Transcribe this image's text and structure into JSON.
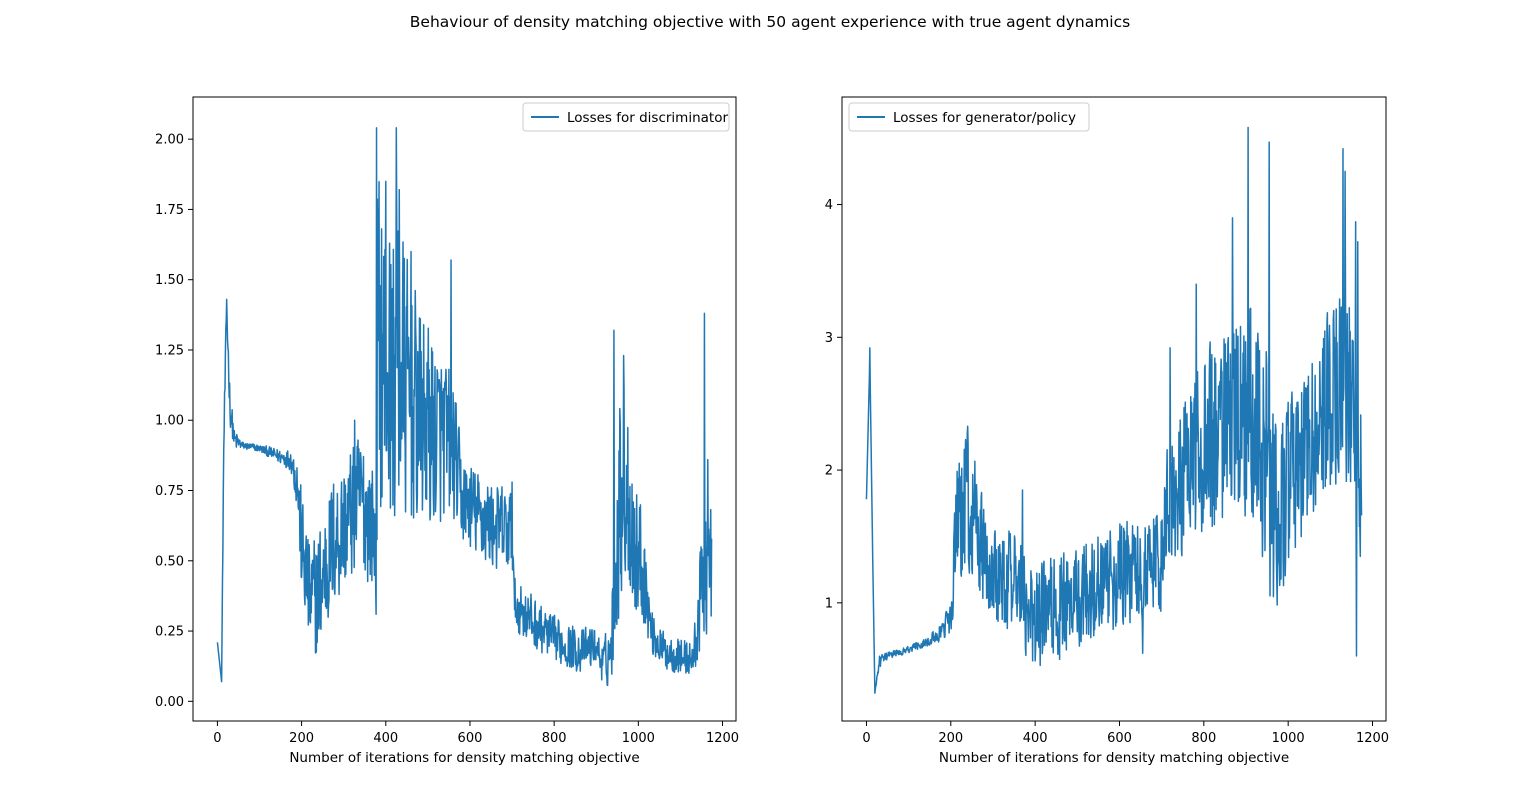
{
  "figure_title": "Behaviour of density matching objective with 50 agent experience with true agent dynamics",
  "chart_data": [
    {
      "type": "line",
      "title": "",
      "xlabel": "Number of iterations for density matching objective",
      "ylabel": "",
      "xlim": [
        -58,
        1232
      ],
      "ylim": [
        -0.07,
        2.15
      ],
      "xticks": [
        0,
        200,
        400,
        600,
        800,
        1000,
        1200
      ],
      "yticks": [
        0.0,
        0.25,
        0.5,
        0.75,
        1.0,
        1.25,
        1.5,
        1.75,
        2.0
      ],
      "ytick_labels": [
        "0.00",
        "0.25",
        "0.50",
        "0.75",
        "1.00",
        "1.25",
        "1.50",
        "1.75",
        "2.00"
      ],
      "grid": false,
      "legend_position": "upper right",
      "series": [
        {
          "name": "Losses for discriminator",
          "color": "#1f77b4",
          "n_points": 1175,
          "envelope": {
            "x": [
              0,
              10,
              15,
              22,
              30,
              40,
              60,
              100,
              150,
              175,
              190,
              200,
              210,
              220,
              240,
              270,
              300,
              340,
              370,
              378,
              380,
              390,
              410,
              430,
              450,
              480,
              520,
              560,
              580,
              620,
              660,
              700,
              705,
              750,
              800,
              860,
              900,
              915,
              935,
              950,
              960,
              975,
              990,
              1010,
              1030,
              1060,
              1100,
              1130,
              1140,
              1150,
              1160,
              1170,
              1175
            ],
            "mean": [
              0.21,
              0.07,
              0.9,
              1.4,
              1.05,
              0.93,
              0.91,
              0.9,
              0.87,
              0.86,
              0.78,
              0.55,
              0.45,
              0.35,
              0.38,
              0.55,
              0.62,
              0.72,
              0.62,
              0.5,
              1.3,
              1.25,
              1.15,
              1.2,
              1.1,
              1.0,
              0.95,
              0.9,
              0.72,
              0.66,
              0.62,
              0.6,
              0.35,
              0.28,
              0.22,
              0.18,
              0.2,
              0.13,
              0.18,
              0.6,
              0.8,
              0.75,
              0.55,
              0.5,
              0.25,
              0.18,
              0.16,
              0.15,
              0.25,
              0.4,
              0.5,
              0.45,
              0.5
            ],
            "amp": [
              0.0,
              0.0,
              0.05,
              0.05,
              0.05,
              0.03,
              0.01,
              0.01,
              0.02,
              0.03,
              0.08,
              0.15,
              0.15,
              0.15,
              0.18,
              0.18,
              0.18,
              0.18,
              0.18,
              0.15,
              0.45,
              0.45,
              0.4,
              0.45,
              0.35,
              0.3,
              0.25,
              0.2,
              0.12,
              0.12,
              0.12,
              0.12,
              0.07,
              0.07,
              0.06,
              0.06,
              0.05,
              0.05,
              0.1,
              0.25,
              0.3,
              0.25,
              0.2,
              0.15,
              0.06,
              0.05,
              0.05,
              0.05,
              0.1,
              0.15,
              0.2,
              0.2,
              0.15
            ]
          },
          "spikes": [
            [
              378,
              2.04
            ],
            [
              382,
              1.75
            ],
            [
              400,
              1.85
            ],
            [
              425,
              2.04
            ],
            [
              432,
              1.82
            ],
            [
              460,
              1.6
            ],
            [
              555,
              1.57
            ],
            [
              942,
              1.32
            ],
            [
              965,
              1.23
            ],
            [
              1157,
              1.38
            ],
            [
              1165,
              0.86
            ],
            [
              22,
              1.43
            ],
            [
              326,
              1.0
            ],
            [
              700,
              0.78
            ]
          ]
        }
      ]
    },
    {
      "type": "line",
      "title": "",
      "xlabel": "Number of iterations for density matching objective",
      "ylabel": "",
      "xlim": [
        -58,
        1232
      ],
      "ylim": [
        0.11,
        4.81
      ],
      "xticks": [
        0,
        200,
        400,
        600,
        800,
        1000,
        1200
      ],
      "yticks": [
        1,
        2,
        3,
        4
      ],
      "ytick_labels": [
        "1",
        "2",
        "3",
        "4"
      ],
      "grid": false,
      "legend_position": "upper left",
      "series": [
        {
          "name": "Losses for generator/policy",
          "color": "#1f77b4",
          "n_points": 1175,
          "envelope": {
            "x": [
              0,
              8,
              15,
              20,
              30,
              50,
              100,
              150,
              180,
              200,
              215,
              240,
              270,
              300,
              340,
              370,
              378,
              400,
              450,
              500,
              560,
              620,
              680,
              700,
              705,
              760,
              820,
              880,
              900,
              930,
              950,
              965,
              980,
              1000,
              1040,
              1080,
              1100,
              1130,
              1150,
              1165,
              1175
            ],
            "mean": [
              1.78,
              2.85,
              1.3,
              0.32,
              0.55,
              0.6,
              0.65,
              0.72,
              0.78,
              0.9,
              1.55,
              1.75,
              1.45,
              1.25,
              1.15,
              1.15,
              0.9,
              0.9,
              0.95,
              1.05,
              1.15,
              1.25,
              1.3,
              1.3,
              1.75,
              2.0,
              2.2,
              2.35,
              2.5,
              2.4,
              2.0,
              1.6,
              1.6,
              1.85,
              2.1,
              2.4,
              2.55,
              2.7,
              2.55,
              2.2,
              1.9
            ],
            "amp": [
              0.0,
              0.0,
              0.0,
              0.0,
              0.04,
              0.02,
              0.02,
              0.03,
              0.05,
              0.1,
              0.4,
              0.4,
              0.35,
              0.3,
              0.3,
              0.3,
              0.3,
              0.3,
              0.3,
              0.3,
              0.3,
              0.3,
              0.3,
              0.3,
              0.4,
              0.45,
              0.55,
              0.6,
              0.65,
              0.65,
              0.7,
              0.6,
              0.55,
              0.5,
              0.5,
              0.5,
              0.55,
              0.55,
              0.55,
              0.6,
              0.5
            ]
          },
          "spikes": [
            [
              8,
              2.92
            ],
            [
              905,
              4.58
            ],
            [
              955,
              4.47
            ],
            [
              1130,
              4.42
            ],
            [
              1135,
              4.25
            ],
            [
              868,
              3.9
            ],
            [
              1160,
              3.87
            ],
            [
              1165,
              3.72
            ],
            [
              782,
              3.4
            ],
            [
              720,
              2.92
            ],
            [
              240,
              2.33
            ],
            [
              370,
              1.85
            ],
            [
              1162,
              0.6
            ],
            [
              655,
              0.62
            ]
          ]
        }
      ]
    }
  ]
}
